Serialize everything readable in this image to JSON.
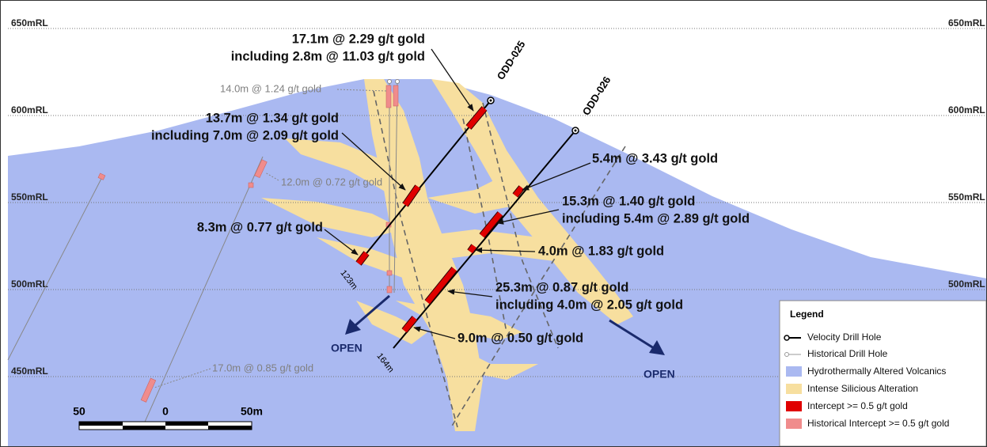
{
  "levels": {
    "left": [
      "650mRL",
      "600mRL",
      "550mRL",
      "500mRL",
      "450mRL"
    ],
    "right": [
      "650mRL",
      "600mRL",
      "550mRL",
      "500mRL"
    ]
  },
  "drill_holes": [
    {
      "name": "ODD-025",
      "depth": "123m"
    },
    {
      "name": "ODD-026",
      "depth": "164m"
    }
  ],
  "intercepts": [
    "17.1m @ 2.29 g/t gold",
    "including 2.8m @ 11.03 g/t gold",
    "13.7m @ 1.34 g/t gold",
    "including 7.0m @ 2.09 g/t gold",
    "5.4m @ 3.43 g/t gold",
    "15.3m @ 1.40 g/t gold",
    "including 5.4m @ 2.89 g/t gold",
    "8.3m @ 0.77 g/t gold",
    "4.0m @ 1.83 g/t gold",
    "25.3m @ 0.87 g/t gold",
    "including 4.0m @ 2.05 g/t gold",
    "9.0m @ 0.50 g/t gold"
  ],
  "historical_intercepts": [
    "14.0m @ 1.24 g/t gold",
    "12.0m @ 0.72 g/t gold",
    "17.0m @ 0.85 g/t gold"
  ],
  "open_labels": [
    "OPEN",
    "OPEN"
  ],
  "scale_bar": [
    "50",
    "0",
    "50m"
  ],
  "legend": {
    "title": "Legend",
    "items": [
      "Velocity Drill Hole",
      "Historical Drill Hole",
      "Hydrothermally Altered Volcanics",
      "Intense Silicious Alteration",
      "Intercept >= 0.5 g/t gold",
      "Historical Intercept >= 0.5 g/t gold"
    ]
  }
}
